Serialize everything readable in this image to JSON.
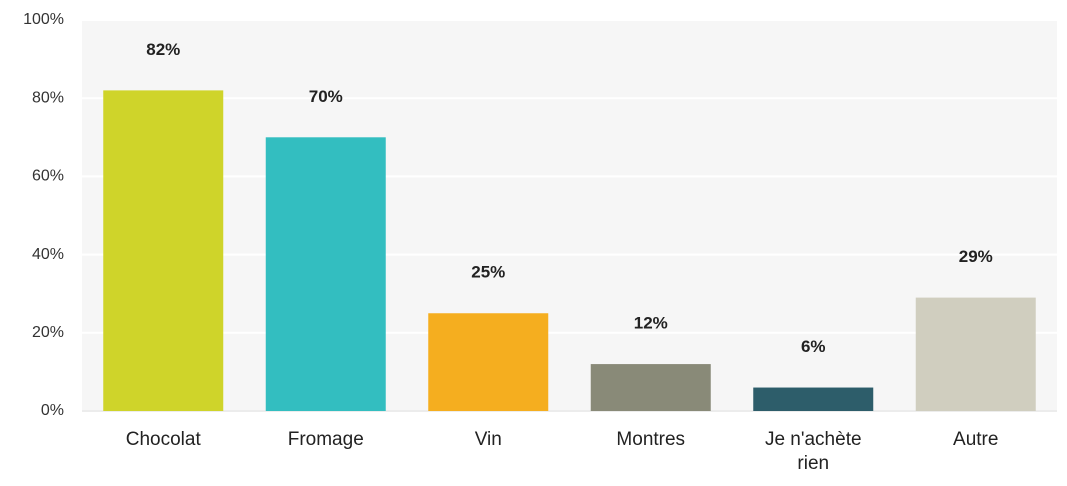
{
  "chart_data": {
    "type": "bar",
    "categories": [
      "Chocolat",
      "Fromage",
      "Vin",
      "Montres",
      "Je n'achète rien",
      "Autre"
    ],
    "values": [
      82,
      70,
      25,
      12,
      6,
      29
    ],
    "value_labels": [
      "82%",
      "70%",
      "25%",
      "12%",
      "6%",
      "29%"
    ],
    "colors": [
      "#cfd42a",
      "#33bec0",
      "#f5ae1f",
      "#898a78",
      "#2d5d6a",
      "#d0cebf"
    ],
    "ylim": [
      0,
      100
    ],
    "yticks": [
      {
        "value": 0,
        "label": "0%"
      },
      {
        "value": 20,
        "label": "20%"
      },
      {
        "value": 40,
        "label": "40%"
      },
      {
        "value": 60,
        "label": "60%"
      },
      {
        "value": 80,
        "label": "80%"
      },
      {
        "value": 100,
        "label": "100%"
      }
    ],
    "grid": true
  }
}
